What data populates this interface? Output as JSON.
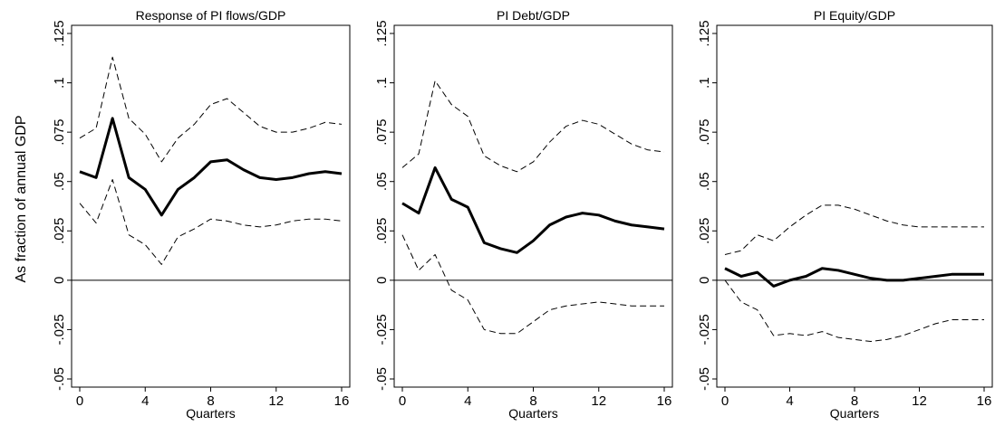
{
  "ylabel": "As fraction of annual GDP",
  "chart_data": [
    {
      "type": "line",
      "title": "Response of PI flows/GDP",
      "xlabel": "Quarters",
      "ylabel": "As fraction of annual GDP",
      "xlim": [
        0,
        16
      ],
      "ylim": [
        -0.05,
        0.125
      ],
      "x_ticks": [
        0,
        4,
        8,
        12,
        16
      ],
      "y_ticks": [
        -0.05,
        -0.025,
        0,
        0.025,
        0.05,
        0.075,
        0.1,
        0.125
      ],
      "y_tick_labels": [
        "-.05",
        "-.025",
        "0",
        ".025",
        ".05",
        ".075",
        ".1",
        ".125"
      ],
      "zero_line": true,
      "grid": false,
      "x": [
        0,
        1,
        2,
        3,
        4,
        5,
        6,
        7,
        8,
        9,
        10,
        11,
        12,
        13,
        14,
        15,
        16
      ],
      "series": [
        {
          "role": "estimate",
          "values": [
            0.055,
            0.052,
            0.082,
            0.052,
            0.046,
            0.033,
            0.046,
            0.052,
            0.06,
            0.061,
            0.056,
            0.052,
            0.051,
            0.052,
            0.054,
            0.055,
            0.054
          ]
        },
        {
          "role": "upper",
          "values": [
            0.072,
            0.077,
            0.113,
            0.082,
            0.074,
            0.06,
            0.072,
            0.079,
            0.089,
            0.092,
            0.085,
            0.078,
            0.075,
            0.075,
            0.077,
            0.08,
            0.079
          ]
        },
        {
          "role": "lower",
          "values": [
            0.039,
            0.029,
            0.051,
            0.023,
            0.018,
            0.008,
            0.022,
            0.026,
            0.031,
            0.03,
            0.028,
            0.027,
            0.028,
            0.03,
            0.031,
            0.031,
            0.03
          ]
        }
      ]
    },
    {
      "type": "line",
      "title": "PI Debt/GDP",
      "xlabel": "Quarters",
      "xlim": [
        0,
        16
      ],
      "ylim": [
        -0.05,
        0.125
      ],
      "x_ticks": [
        0,
        4,
        8,
        12,
        16
      ],
      "y_ticks": [
        -0.05,
        -0.025,
        0,
        0.025,
        0.05,
        0.075,
        0.1,
        0.125
      ],
      "y_tick_labels": [
        "-.05",
        "-.025",
        "0",
        ".025",
        ".05",
        ".075",
        ".1",
        ".125"
      ],
      "zero_line": true,
      "grid": false,
      "x": [
        0,
        1,
        2,
        3,
        4,
        5,
        6,
        7,
        8,
        9,
        10,
        11,
        12,
        13,
        14,
        15,
        16
      ],
      "series": [
        {
          "role": "estimate",
          "values": [
            0.039,
            0.034,
            0.057,
            0.041,
            0.037,
            0.019,
            0.016,
            0.014,
            0.02,
            0.028,
            0.032,
            0.034,
            0.033,
            0.03,
            0.028,
            0.027,
            0.026
          ]
        },
        {
          "role": "upper",
          "values": [
            0.057,
            0.064,
            0.101,
            0.089,
            0.083,
            0.063,
            0.058,
            0.055,
            0.06,
            0.07,
            0.078,
            0.081,
            0.079,
            0.074,
            0.069,
            0.066,
            0.065
          ]
        },
        {
          "role": "lower",
          "values": [
            0.023,
            0.005,
            0.013,
            -0.005,
            -0.01,
            -0.025,
            -0.027,
            -0.027,
            -0.021,
            -0.015,
            -0.013,
            -0.012,
            -0.011,
            -0.012,
            -0.013,
            -0.013,
            -0.013
          ]
        }
      ]
    },
    {
      "type": "line",
      "title": "PI Equity/GDP",
      "xlabel": "Quarters",
      "xlim": [
        0,
        16
      ],
      "ylim": [
        -0.05,
        0.125
      ],
      "x_ticks": [
        0,
        4,
        8,
        12,
        16
      ],
      "y_ticks": [
        -0.05,
        -0.025,
        0,
        0.025,
        0.05,
        0.075,
        0.1,
        0.125
      ],
      "y_tick_labels": [
        "-.05",
        "-.025",
        "0",
        ".025",
        ".05",
        ".075",
        ".1",
        ".125"
      ],
      "zero_line": true,
      "grid": false,
      "x": [
        0,
        1,
        2,
        3,
        4,
        5,
        6,
        7,
        8,
        9,
        10,
        11,
        12,
        13,
        14,
        15,
        16
      ],
      "series": [
        {
          "role": "estimate",
          "values": [
            0.006,
            0.002,
            0.004,
            -0.003,
            0.0,
            0.002,
            0.006,
            0.005,
            0.003,
            0.001,
            0.0,
            0.0,
            0.001,
            0.002,
            0.003,
            0.003,
            0.003
          ]
        },
        {
          "role": "upper",
          "values": [
            0.013,
            0.015,
            0.023,
            0.02,
            0.027,
            0.033,
            0.038,
            0.038,
            0.036,
            0.033,
            0.03,
            0.028,
            0.027,
            0.027,
            0.027,
            0.027,
            0.027
          ]
        },
        {
          "role": "lower",
          "values": [
            0.0,
            -0.011,
            -0.015,
            -0.028,
            -0.027,
            -0.028,
            -0.026,
            -0.029,
            -0.03,
            -0.031,
            -0.03,
            -0.028,
            -0.025,
            -0.022,
            -0.02,
            -0.02,
            -0.02
          ]
        }
      ]
    }
  ]
}
